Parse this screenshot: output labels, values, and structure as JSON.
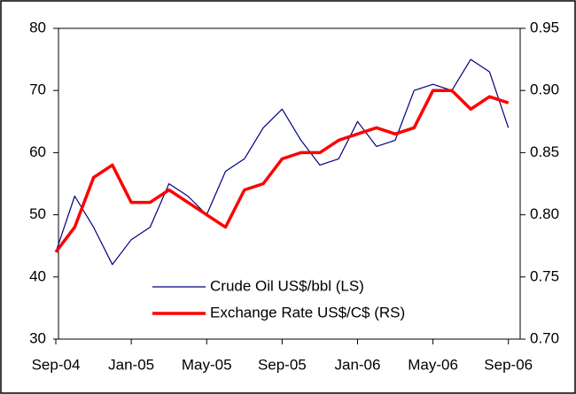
{
  "chart_data": {
    "type": "line",
    "x": [
      "2004-09",
      "2004-10",
      "2004-11",
      "2004-12",
      "2005-01",
      "2005-02",
      "2005-03",
      "2005-04",
      "2005-05",
      "2005-06",
      "2005-07",
      "2005-08",
      "2005-09",
      "2005-10",
      "2005-11",
      "2005-12",
      "2006-01",
      "2006-02",
      "2006-03",
      "2006-04",
      "2006-05",
      "2006-06",
      "2006-07",
      "2006-08",
      "2006-09"
    ],
    "xlim": [
      "2004-09",
      "2006-10"
    ],
    "xticks": [
      {
        "value": "2004-09",
        "label": "Sep-04"
      },
      {
        "value": "2005-01",
        "label": "Jan-05"
      },
      {
        "value": "2005-05",
        "label": "May-05"
      },
      {
        "value": "2005-09",
        "label": "Sep-05"
      },
      {
        "value": "2006-01",
        "label": "Jan-06"
      },
      {
        "value": "2006-05",
        "label": "May-06"
      },
      {
        "value": "2006-09",
        "label": "Sep-06"
      }
    ],
    "ylim": [
      30,
      80
    ],
    "yticks": [
      30,
      40,
      50,
      60,
      70,
      80
    ],
    "y2lim": [
      0.7,
      0.95
    ],
    "y2ticks": [
      {
        "value": 0.7,
        "label": "0.70"
      },
      0.75,
      {
        "value": 0.8,
        "label": "0.80"
      },
      0.85,
      {
        "value": 0.9,
        "label": "0.90"
      },
      0.95
    ],
    "grid": false,
    "legend": "bottom",
    "series": [
      {
        "name": "Crude Oil US$/bbl (LS)",
        "color": "#000080",
        "width": 1.2,
        "values": [
          44,
          53,
          48,
          42,
          46,
          48,
          55,
          53,
          50,
          57,
          59,
          64,
          67,
          62,
          58,
          59,
          65,
          61,
          62,
          70,
          71,
          70,
          75,
          73,
          64
        ]
      },
      {
        "name": "Exchange Rate US$/C$ (RS)",
        "color": "#ff0000",
        "width": 3.5,
        "axis": "y2",
        "values": [
          0.77,
          0.79,
          0.83,
          0.84,
          0.81,
          0.81,
          0.82,
          0.81,
          0.8,
          0.79,
          0.82,
          0.825,
          0.845,
          0.85,
          0.85,
          0.86,
          0.865,
          0.87,
          0.865,
          0.87,
          0.9,
          0.9,
          0.885,
          0.895,
          0.89
        ]
      }
    ]
  }
}
